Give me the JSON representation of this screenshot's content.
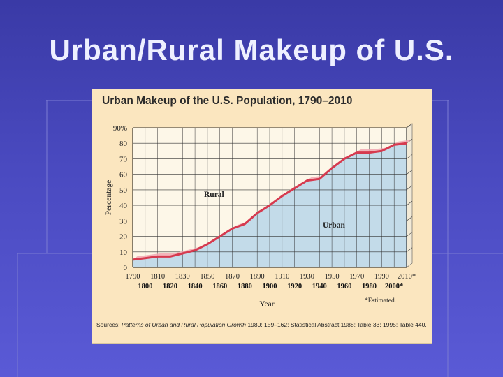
{
  "slide": {
    "title": "Urban/Rural Makeup of U.S."
  },
  "figure": {
    "sources_prefix": "Sources: ",
    "sources_italic": "Patterns of Urban and Rural Population Growth",
    "sources_rest": " 1980: 159–162; Statistical Abstract 1988: Table 33; 1995: Table 440."
  },
  "chart_data": {
    "type": "area",
    "title": "Urban Makeup of the U.S. Population, 1790–2010",
    "xlabel": "Year",
    "ylabel": "Percentage",
    "ylim": [
      0,
      90
    ],
    "xlim": [
      1790,
      2010
    ],
    "yticks": [
      "0",
      "10",
      "20",
      "30",
      "40",
      "50",
      "60",
      "70",
      "80",
      "90%"
    ],
    "xticks_top": [
      "1790",
      "1810",
      "1830",
      "1850",
      "1870",
      "1890",
      "1910",
      "1930",
      "1950",
      "1970",
      "1990",
      "2010*"
    ],
    "xticks_bottom": [
      "1800",
      "1820",
      "1840",
      "1860",
      "1880",
      "1900",
      "1920",
      "1940",
      "1960",
      "1980",
      "2000*"
    ],
    "footnote": "*Estimated.",
    "grid": true,
    "region_labels": [
      "Rural",
      "Urban"
    ],
    "series": [
      {
        "x": [
          1790,
          1800,
          1810,
          1820,
          1830,
          1840,
          1850,
          1860,
          1870,
          1880,
          1890,
          1900,
          1910,
          1920,
          1930,
          1940,
          1950,
          1960,
          1970,
          1980,
          1990,
          2000,
          2010
        ],
        "values": [
          5,
          6,
          7,
          7,
          9,
          11,
          15,
          20,
          25,
          28,
          35,
          40,
          46,
          51,
          56,
          57,
          64,
          70,
          74,
          74,
          75,
          79,
          80
        ]
      }
    ],
    "colors": {
      "urban_fill": "#c3dbe9",
      "rural_fill": "#fdf7e8",
      "line": "#d63a4f",
      "band": "#f1a8b1",
      "grid": "#333333"
    }
  }
}
